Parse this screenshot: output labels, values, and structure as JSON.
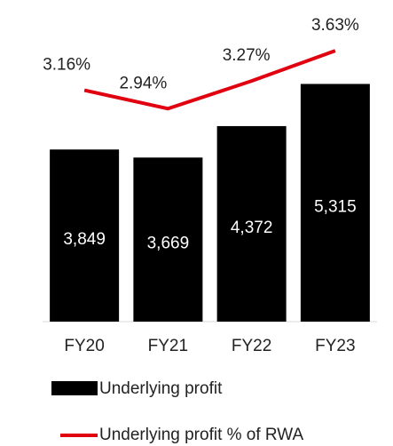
{
  "chart_data": {
    "type": "bar_line",
    "categories": [
      "FY20",
      "FY21",
      "FY22",
      "FY23"
    ],
    "series": [
      {
        "name": "Underlying profit",
        "type": "bar",
        "color": "#000000",
        "values": [
          3849,
          3669,
          4372,
          5315
        ],
        "value_labels": [
          "3,849",
          "3,669",
          "4,372",
          "5,315"
        ]
      },
      {
        "name": "Underlying profit % of RWA",
        "type": "line",
        "axis": "y2",
        "color": "#e0000f",
        "values": [
          3.16,
          2.94,
          3.27,
          3.63
        ],
        "value_labels": [
          "3.16%",
          "2.94%",
          "3.27%",
          "3.63%"
        ]
      }
    ],
    "ylim": [
      0,
      6000
    ],
    "y2lim": [
      0.4,
      3.6
    ],
    "legend": "bottom"
  }
}
